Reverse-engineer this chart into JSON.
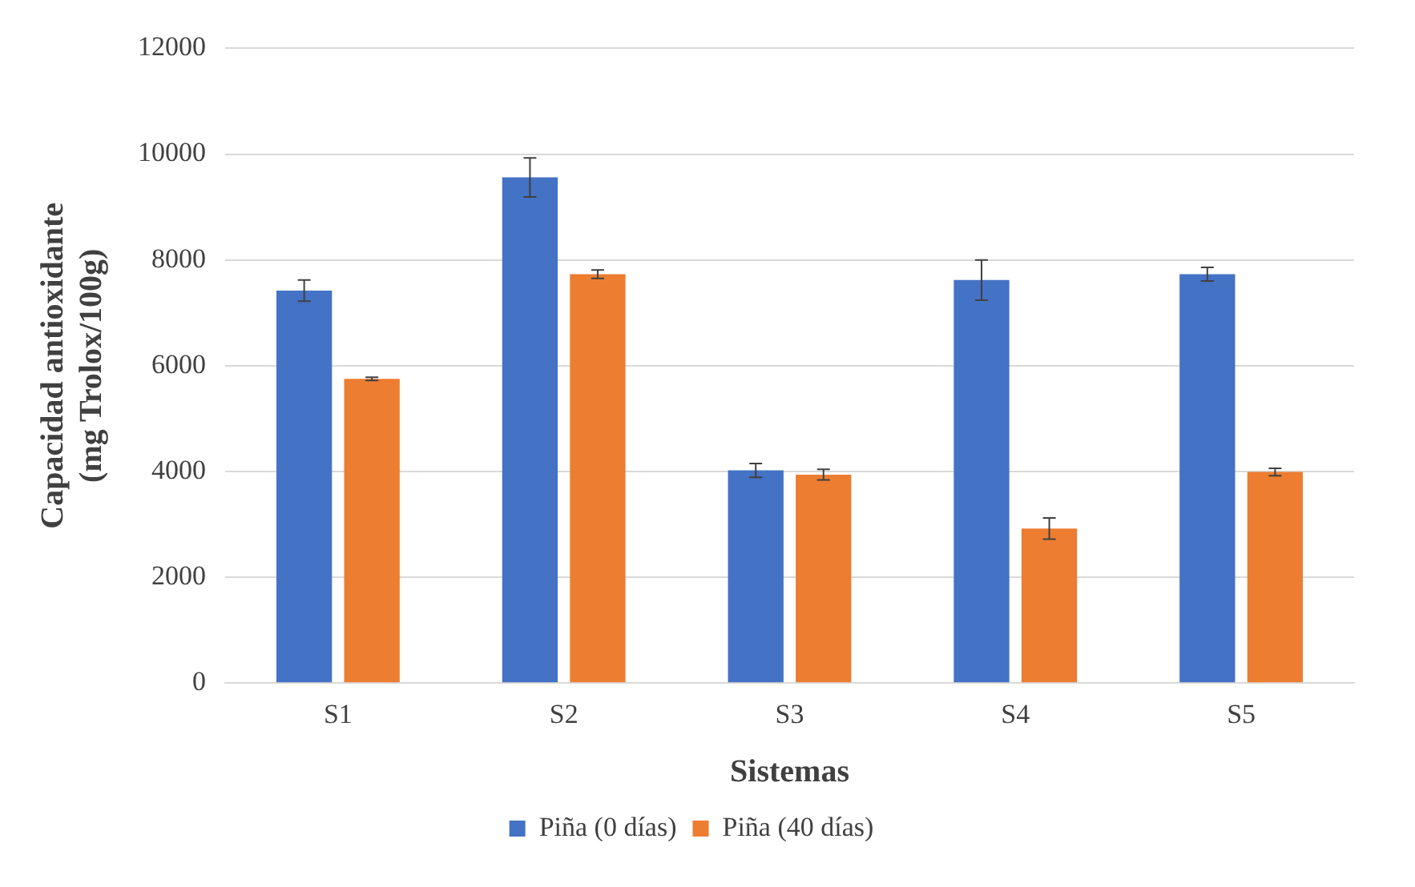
{
  "chart_data": {
    "type": "bar",
    "xlabel": "Sistemas",
    "ylabel": "Capacidad antioxidante (mg Trolox/100g)",
    "categories": [
      "S1",
      "S2",
      "S3",
      "S4",
      "S5"
    ],
    "series": [
      {
        "name": "Piña (0 días)",
        "color": "#4472c4",
        "values": [
          7420,
          9560,
          4020,
          7620,
          7730
        ],
        "errors": [
          200,
          370,
          130,
          380,
          130
        ]
      },
      {
        "name": "Piña (40 días)",
        "color": "#ed7d31",
        "values": [
          5750,
          7730,
          3940,
          2920,
          3990
        ],
        "errors": [
          30,
          80,
          100,
          200,
          70
        ]
      }
    ],
    "ylim": [
      0,
      12000
    ],
    "yticks": [
      0,
      2000,
      4000,
      6000,
      8000,
      10000,
      12000
    ],
    "grid": "y",
    "legend": "bottom"
  }
}
